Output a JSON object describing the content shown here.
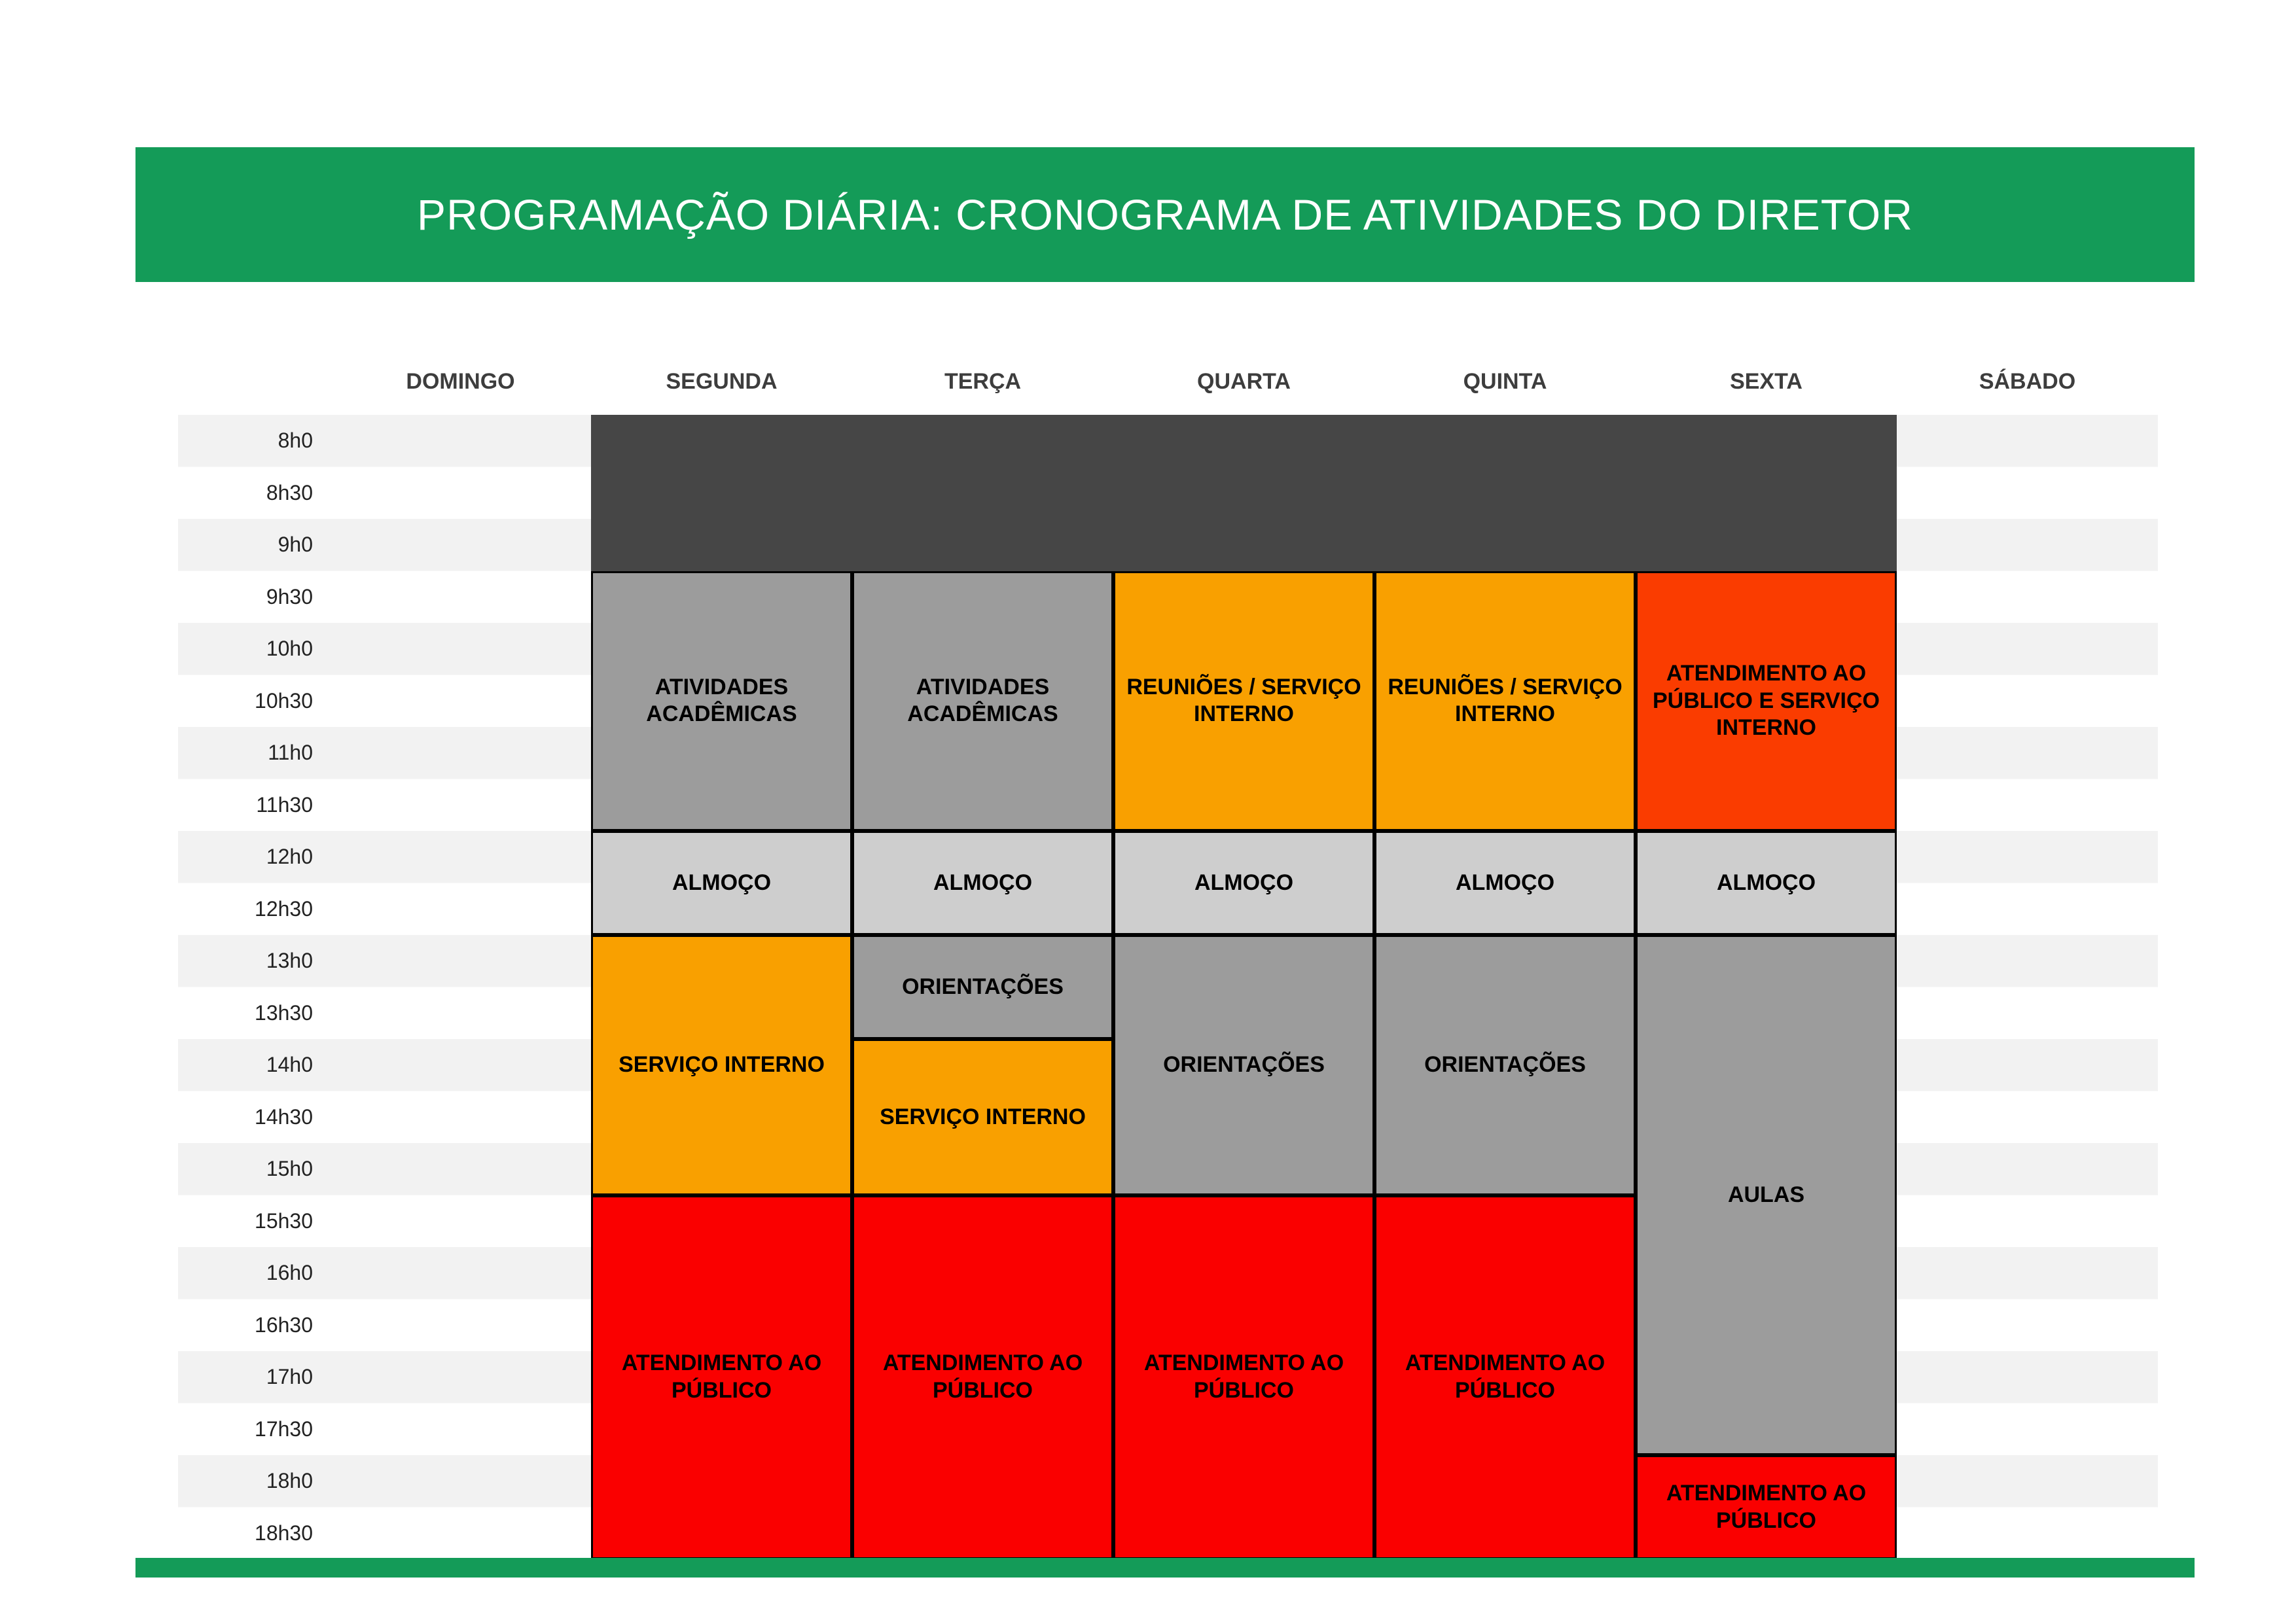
{
  "banner": {
    "title": "PROGRAMAÇÃO DIÁRIA: CRONOGRAMA DE ATIVIDADES DO DIRETOR"
  },
  "days": [
    "DOMINGO",
    "SEGUNDA",
    "TERÇA",
    "QUARTA",
    "QUINTA",
    "SEXTA",
    "SÁBADO"
  ],
  "times": [
    "8h0",
    "8h30",
    "9h0",
    "9h30",
    "10h0",
    "10h30",
    "11h0",
    "11h30",
    "12h0",
    "12h30",
    "13h0",
    "13h30",
    "14h0",
    "14h30",
    "15h0",
    "15h30",
    "16h0",
    "16h30",
    "17h0",
    "17h30",
    "18h0",
    "18h30"
  ],
  "colors": {
    "banner_green": "#149b58",
    "blocked_dark": "#464646",
    "gray_activity": "#9c9c9c",
    "lunch_light_gray": "#cecece",
    "orange_activity": "#f9a000",
    "orange_red_activity": "#fa3c00",
    "red_activity": "#fa0000",
    "row_stripe": "#f2f2f2"
  },
  "chart_data": {
    "type": "table",
    "title": "PROGRAMAÇÃO DIÁRIA: CRONOGRAMA DE ATIVIDADES DO DIRETOR",
    "x_categories": [
      "DOMINGO",
      "SEGUNDA",
      "TERÇA",
      "QUARTA",
      "QUINTA",
      "SEXTA",
      "SÁBADO"
    ],
    "y_categories": [
      "8h0",
      "8h30",
      "9h0",
      "9h30",
      "10h0",
      "10h30",
      "11h0",
      "11h30",
      "12h0",
      "12h30",
      "13h0",
      "13h30",
      "14h0",
      "14h30",
      "15h0",
      "15h30",
      "16h0",
      "16h30",
      "17h0",
      "17h30",
      "18h0",
      "18h30"
    ],
    "blocks": [
      {
        "day": "SEGUNDA–SEXTA",
        "label": "",
        "from": "8h0",
        "through": "9h0",
        "color": "#464646"
      },
      {
        "day": "SEGUNDA",
        "label": "ATIVIDADES ACADÊMICAS",
        "from": "9h30",
        "through": "11h30",
        "color": "#9c9c9c"
      },
      {
        "day": "TERÇA",
        "label": "ATIVIDADES ACADÊMICAS",
        "from": "9h30",
        "through": "11h30",
        "color": "#9c9c9c"
      },
      {
        "day": "QUARTA",
        "label": "REUNIÕES / SERVIÇO INTERNO",
        "from": "9h30",
        "through": "11h30",
        "color": "#f9a000"
      },
      {
        "day": "QUINTA",
        "label": "REUNIÕES / SERVIÇO INTERNO",
        "from": "9h30",
        "through": "11h30",
        "color": "#f9a000"
      },
      {
        "day": "SEXTA",
        "label": "ATENDIMENTO AO PÚBLICO E SERVIÇO INTERNO",
        "from": "9h30",
        "through": "11h30",
        "color": "#fa3c00"
      },
      {
        "day": "SEGUNDA",
        "label": "ALMOÇO",
        "from": "12h0",
        "through": "12h30",
        "color": "#cecece"
      },
      {
        "day": "TERÇA",
        "label": "ALMOÇO",
        "from": "12h0",
        "through": "12h30",
        "color": "#cecece"
      },
      {
        "day": "QUARTA",
        "label": "ALMOÇO",
        "from": "12h0",
        "through": "12h30",
        "color": "#cecece"
      },
      {
        "day": "QUINTA",
        "label": "ALMOÇO",
        "from": "12h0",
        "through": "12h30",
        "color": "#cecece"
      },
      {
        "day": "SEXTA",
        "label": "ALMOÇO",
        "from": "12h0",
        "through": "12h30",
        "color": "#cecece"
      },
      {
        "day": "SEGUNDA",
        "label": "SERVIÇO INTERNO",
        "from": "13h0",
        "through": "15h0",
        "color": "#f9a000"
      },
      {
        "day": "TERÇA",
        "label": "ORIENTAÇÕES",
        "from": "13h0",
        "through": "13h30",
        "color": "#9c9c9c"
      },
      {
        "day": "TERÇA",
        "label": "SERVIÇO INTERNO",
        "from": "14h0",
        "through": "15h0",
        "color": "#f9a000"
      },
      {
        "day": "QUARTA",
        "label": "ORIENTAÇÕES",
        "from": "13h0",
        "through": "15h0",
        "color": "#9c9c9c"
      },
      {
        "day": "QUINTA",
        "label": "ORIENTAÇÕES",
        "from": "13h0",
        "through": "15h0",
        "color": "#9c9c9c"
      },
      {
        "day": "SEXTA",
        "label": "AULAS",
        "from": "13h0",
        "through": "17h30",
        "color": "#9c9c9c"
      },
      {
        "day": "SEGUNDA",
        "label": "ATENDIMENTO AO PÚBLICO",
        "from": "15h30",
        "through": "18h30",
        "color": "#fa0000"
      },
      {
        "day": "TERÇA",
        "label": "ATENDIMENTO AO PÚBLICO",
        "from": "15h30",
        "through": "18h30",
        "color": "#fa0000"
      },
      {
        "day": "QUARTA",
        "label": "ATENDIMENTO AO PÚBLICO",
        "from": "15h30",
        "through": "18h30",
        "color": "#fa0000"
      },
      {
        "day": "QUINTA",
        "label": "ATENDIMENTO AO PÚBLICO",
        "from": "15h30",
        "through": "18h30",
        "color": "#fa0000"
      },
      {
        "day": "SEXTA",
        "label": "ATENDIMENTO AO PÚBLICO",
        "from": "18h0",
        "through": "18h30",
        "color": "#fa0000"
      }
    ]
  }
}
